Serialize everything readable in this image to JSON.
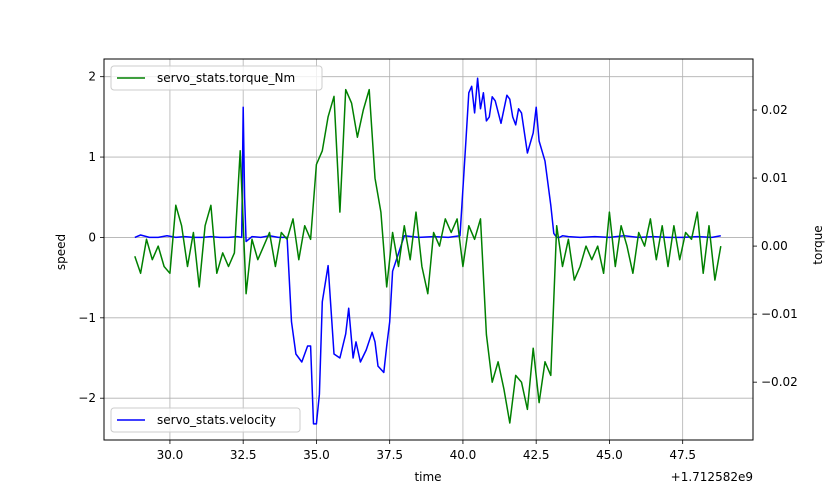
{
  "chart_data": {
    "type": "line",
    "xlabel": "time",
    "ylabel_left": "speed",
    "ylabel_right": "torque",
    "x_offset_label": "+1.712582e9",
    "xlim": [
      27.75,
      49.9
    ],
    "ylim_left": [
      -2.52,
      2.22
    ],
    "ylim_right": [
      -0.0285,
      0.0275
    ],
    "x_ticks": [
      30.0,
      32.5,
      35.0,
      37.5,
      40.0,
      42.5,
      45.0,
      47.5
    ],
    "x_tick_labels": [
      "30.0",
      "32.5",
      "35.0",
      "37.5",
      "40.0",
      "42.5",
      "45.0",
      "47.5"
    ],
    "y_left_ticks": [
      -2,
      -1,
      0,
      1,
      2
    ],
    "y_left_tick_labels": [
      "−2",
      "−1",
      "0",
      "1",
      "2"
    ],
    "y_right_ticks": [
      -0.02,
      -0.01,
      0.0,
      0.01,
      0.02
    ],
    "y_right_tick_labels": [
      "−0.02",
      "−0.01",
      "0.00",
      "0.01",
      "0.02"
    ],
    "grid": true,
    "series": [
      {
        "name": "servo_stats.velocity",
        "axis": "left",
        "color": "#0000ff",
        "legend_position": "bottom-left",
        "x": [
          28.8,
          29.0,
          29.3,
          29.6,
          29.9,
          30.2,
          30.5,
          30.8,
          31.1,
          31.4,
          31.7,
          32.0,
          32.3,
          32.45,
          32.5,
          32.55,
          32.6,
          32.8,
          33.1,
          33.4,
          33.7,
          34.0,
          34.15,
          34.3,
          34.5,
          34.7,
          34.8,
          34.9,
          35.0,
          35.1,
          35.2,
          35.4,
          35.6,
          35.8,
          36.0,
          36.1,
          36.25,
          36.35,
          36.5,
          36.7,
          36.9,
          37.0,
          37.1,
          37.3,
          37.4,
          37.5,
          37.6,
          38.0,
          38.5,
          39.0,
          39.5,
          39.9,
          40.1,
          40.2,
          40.3,
          40.4,
          40.5,
          40.6,
          40.7,
          40.8,
          40.9,
          41.0,
          41.1,
          41.3,
          41.5,
          41.6,
          41.7,
          41.8,
          41.9,
          42.0,
          42.2,
          42.4,
          42.5,
          42.6,
          42.8,
          43.0,
          43.1,
          43.2,
          43.3,
          43.4,
          43.6,
          44.0,
          44.5,
          45.0,
          45.5,
          46.0,
          46.5,
          47.0,
          47.5,
          48.0,
          48.5,
          48.8
        ],
        "y": [
          0.0,
          0.03,
          0.0,
          0.0,
          0.02,
          0.0,
          0.01,
          0.0,
          0.0,
          0.01,
          0.0,
          0.0,
          0.01,
          0.0,
          1.62,
          0.5,
          -0.05,
          0.01,
          0.0,
          0.02,
          0.0,
          0.0,
          -1.05,
          -1.45,
          -1.55,
          -1.35,
          -1.35,
          -2.32,
          -2.32,
          -1.95,
          -0.8,
          -0.35,
          -1.45,
          -1.5,
          -1.2,
          -0.88,
          -1.5,
          -1.3,
          -1.55,
          -1.4,
          -1.18,
          -1.3,
          -1.6,
          -1.68,
          -1.35,
          -1.05,
          -0.42,
          0.02,
          0.0,
          0.01,
          0.0,
          0.02,
          1.2,
          1.8,
          1.88,
          1.55,
          1.98,
          1.6,
          1.8,
          1.45,
          1.5,
          1.75,
          1.7,
          1.42,
          1.77,
          1.72,
          1.5,
          1.4,
          1.6,
          1.55,
          1.05,
          1.3,
          1.62,
          1.2,
          0.95,
          0.4,
          0.05,
          0.0,
          0.0,
          0.02,
          0.01,
          0.0,
          0.01,
          0.0,
          0.02,
          0.0,
          0.01,
          0.0,
          0.0,
          0.01,
          0.0,
          0.02
        ]
      },
      {
        "name": "servo_stats.torque_Nm",
        "axis": "right",
        "color": "#008000",
        "legend_position": "top-left",
        "x": [
          28.8,
          29.0,
          29.2,
          29.4,
          29.6,
          29.8,
          30.0,
          30.2,
          30.4,
          30.6,
          30.8,
          31.0,
          31.2,
          31.4,
          31.6,
          31.8,
          32.0,
          32.2,
          32.4,
          32.6,
          32.8,
          33.0,
          33.2,
          33.4,
          33.6,
          33.8,
          34.0,
          34.2,
          34.4,
          34.6,
          34.8,
          35.0,
          35.2,
          35.4,
          35.6,
          35.8,
          36.0,
          36.2,
          36.4,
          36.6,
          36.8,
          37.0,
          37.2,
          37.4,
          37.6,
          37.8,
          38.0,
          38.2,
          38.4,
          38.6,
          38.8,
          39.0,
          39.2,
          39.4,
          39.6,
          39.8,
          40.0,
          40.2,
          40.4,
          40.6,
          40.8,
          41.0,
          41.2,
          41.4,
          41.6,
          41.8,
          42.0,
          42.2,
          42.4,
          42.6,
          42.8,
          43.0,
          43.2,
          43.4,
          43.6,
          43.8,
          44.0,
          44.2,
          44.4,
          44.6,
          44.8,
          45.0,
          45.2,
          45.4,
          45.6,
          45.8,
          46.0,
          46.2,
          46.4,
          46.6,
          46.8,
          47.0,
          47.2,
          47.4,
          47.6,
          47.8,
          48.0,
          48.2,
          48.4,
          48.6,
          48.8
        ],
        "y": [
          -0.0015,
          -0.004,
          0.001,
          -0.002,
          0.0,
          -0.003,
          -0.004,
          0.006,
          0.003,
          -0.003,
          0.002,
          -0.006,
          0.003,
          0.006,
          -0.004,
          -0.001,
          -0.003,
          -0.001,
          0.014,
          -0.007,
          0.001,
          -0.002,
          0.0,
          0.002,
          -0.003,
          0.002,
          0.001,
          0.004,
          -0.002,
          0.003,
          0.001,
          0.012,
          0.014,
          0.019,
          0.022,
          0.005,
          0.023,
          0.021,
          0.016,
          0.02,
          0.023,
          0.01,
          0.005,
          -0.006,
          0.002,
          -0.003,
          0.003,
          -0.002,
          0.005,
          -0.003,
          -0.007,
          0.002,
          0.0,
          0.004,
          0.002,
          0.004,
          -0.003,
          0.003,
          0.001,
          0.004,
          -0.013,
          -0.02,
          -0.017,
          -0.021,
          -0.026,
          -0.019,
          -0.02,
          -0.024,
          -0.015,
          -0.023,
          -0.017,
          -0.019,
          0.003,
          -0.003,
          0.001,
          -0.005,
          -0.003,
          0.0,
          -0.002,
          0.0,
          -0.004,
          0.005,
          -0.003,
          0.003,
          0.0,
          -0.004,
          0.002,
          0.0,
          0.004,
          -0.002,
          0.003,
          -0.003,
          0.003,
          -0.002,
          0.002,
          0.001,
          0.005,
          -0.004,
          0.003,
          -0.005,
          0.0
        ]
      }
    ]
  }
}
